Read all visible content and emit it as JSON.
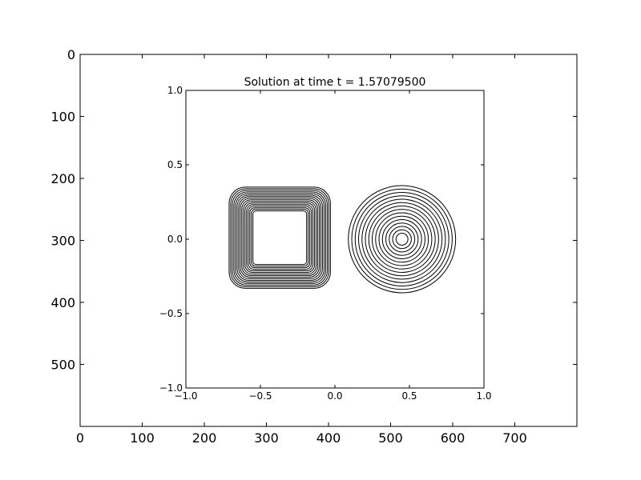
{
  "chart_data": [
    {
      "type": "image-axes",
      "title": "",
      "xlim": [
        0,
        800
      ],
      "ylim": [
        600,
        0
      ],
      "x_ticks": [
        0,
        100,
        200,
        300,
        400,
        500,
        600,
        700
      ],
      "y_ticks": [
        0,
        100,
        200,
        300,
        400,
        500
      ],
      "x_tick_labels": [
        "0",
        "100",
        "200",
        "300",
        "400",
        "500",
        "600",
        "700"
      ],
      "y_tick_labels": [
        "0",
        "100",
        "200",
        "300",
        "400",
        "500"
      ]
    },
    {
      "type": "contour",
      "title": "Solution at time t =     1.57079500",
      "xlim": [
        -1.0,
        1.0
      ],
      "ylim": [
        -1.0,
        1.0
      ],
      "x_ticks": [
        -1.0,
        -0.5,
        0.0,
        0.5,
        1.0
      ],
      "y_ticks": [
        -1.0,
        -0.5,
        0.0,
        0.5,
        1.0
      ],
      "x_tick_labels": [
        "−1.0",
        "−0.5",
        "0.0",
        "0.5",
        "1.0"
      ],
      "y_tick_labels": [
        "−1.0",
        "−0.5",
        "0.0",
        "0.5",
        "1.0"
      ],
      "line_color": "#000000",
      "shapes": [
        {
          "kind": "rounded-square",
          "center": [
            -0.37,
            0.01
          ],
          "outer_half_width": 0.34,
          "inner_half_width": 0.18,
          "levels": 16
        },
        {
          "kind": "circle",
          "center": [
            0.45,
            0.0
          ],
          "outer_radius": 0.36,
          "inner_radius": 0.04,
          "levels": 15
        }
      ]
    }
  ]
}
